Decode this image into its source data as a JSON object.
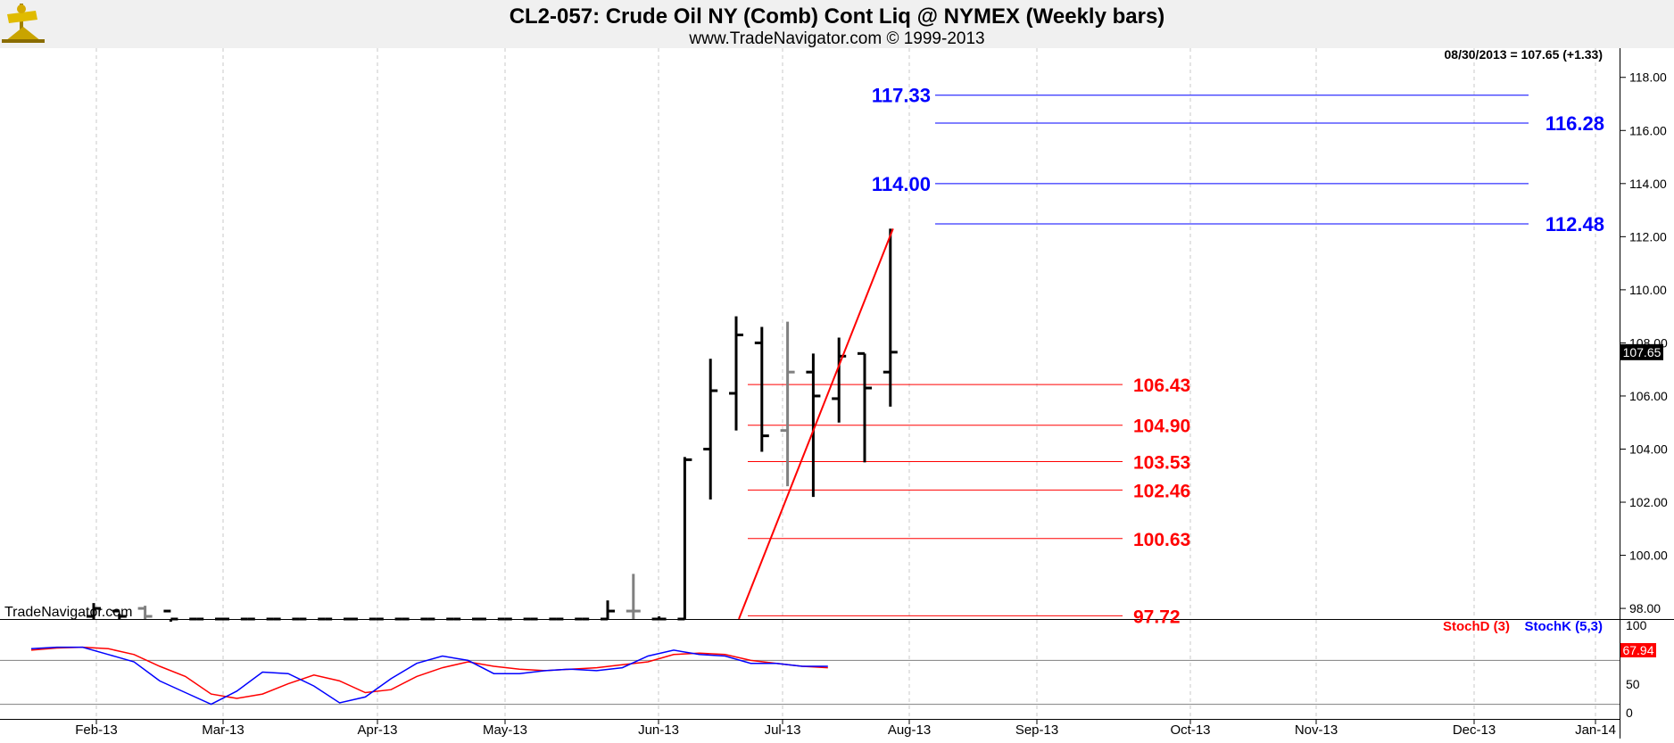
{
  "chart_data": {
    "type": "ohlc",
    "title": "CL2-057:  Crude Oil NY (Comb) Cont Liq @ NYMEX  (Weekly bars)",
    "subtitle": "www.TradeNavigator.com © 1999-2013",
    "last_note": "08/30/2013 = 107.65 (+1.33)",
    "last_value": 107.65,
    "last_label": "107.65",
    "watermark": "TradeNavigator.com",
    "x_tick_labels": [
      "Feb-13",
      "Mar-13",
      "Apr-13",
      "May-13",
      "Jun-13",
      "Jul-13",
      "Aug-13",
      "Sep-13",
      "Oct-13",
      "Nov-13",
      "Dec-13",
      "Jan-14"
    ],
    "price_ylim": [
      97.6,
      119.1
    ],
    "price_ticks": [
      {
        "v": 98,
        "t": "98.00"
      },
      {
        "v": 100,
        "t": "100.00"
      },
      {
        "v": 102,
        "t": "102.00"
      },
      {
        "v": 104,
        "t": "104.00"
      },
      {
        "v": 106,
        "t": "106.00"
      },
      {
        "v": 108,
        "t": "108.00"
      },
      {
        "v": 110,
        "t": "110.00"
      },
      {
        "v": 112,
        "t": "112.00"
      },
      {
        "v": 114,
        "t": "114.00"
      },
      {
        "v": 116,
        "t": "116.00"
      },
      {
        "v": 118,
        "t": "118.00"
      }
    ],
    "bars": [
      {
        "o": 97.7,
        "h": 98.2,
        "l": 97.6,
        "c": 98.0,
        "color": "#000000"
      },
      {
        "o": 97.9,
        "h": 97.8,
        "l": 97.6,
        "c": 97.7,
        "color": "#000000"
      },
      {
        "o": 98.0,
        "h": 98.1,
        "l": 97.6,
        "c": 97.7,
        "color": "#808080"
      },
      {
        "o": 97.9,
        "h": 97.5,
        "l": 97.6,
        "c": 97.6,
        "color": "#000000"
      },
      {
        "o": 97.6,
        "h": 97.6,
        "l": 97.6,
        "c": 97.6,
        "color": "#000000"
      },
      {
        "o": 97.6,
        "h": 97.6,
        "l": 97.6,
        "c": 97.6,
        "color": "#000000"
      },
      {
        "o": 97.6,
        "h": 97.6,
        "l": 97.6,
        "c": 97.6,
        "color": "#000000"
      },
      {
        "o": 97.6,
        "h": 97.6,
        "l": 97.6,
        "c": 97.6,
        "color": "#000000"
      },
      {
        "o": 97.6,
        "h": 97.6,
        "l": 97.6,
        "c": 97.6,
        "color": "#000000"
      },
      {
        "o": 97.6,
        "h": 97.6,
        "l": 97.6,
        "c": 97.6,
        "color": "#000000"
      },
      {
        "o": 97.6,
        "h": 97.6,
        "l": 97.6,
        "c": 97.6,
        "color": "#000000"
      },
      {
        "o": 97.6,
        "h": 97.6,
        "l": 97.6,
        "c": 97.6,
        "color": "#000000"
      },
      {
        "o": 97.6,
        "h": 97.6,
        "l": 97.6,
        "c": 97.6,
        "color": "#000000"
      },
      {
        "o": 97.6,
        "h": 97.6,
        "l": 97.6,
        "c": 97.6,
        "color": "#000000"
      },
      {
        "o": 97.6,
        "h": 97.6,
        "l": 97.6,
        "c": 97.6,
        "color": "#000000"
      },
      {
        "o": 97.6,
        "h": 97.6,
        "l": 97.6,
        "c": 97.6,
        "color": "#000000"
      },
      {
        "o": 97.6,
        "h": 97.6,
        "l": 97.6,
        "c": 97.6,
        "color": "#000000"
      },
      {
        "o": 97.6,
        "h": 97.6,
        "l": 97.6,
        "c": 97.6,
        "color": "#000000"
      },
      {
        "o": 97.6,
        "h": 97.6,
        "l": 97.6,
        "c": 97.6,
        "color": "#000000"
      },
      {
        "o": 97.6,
        "h": 97.6,
        "l": 97.6,
        "c": 97.6,
        "color": "#000000"
      },
      {
        "o": 97.6,
        "h": 98.3,
        "l": 97.6,
        "c": 97.9,
        "color": "#000000"
      },
      {
        "o": 97.9,
        "h": 99.3,
        "l": 97.6,
        "c": 97.9,
        "color": "#808080"
      },
      {
        "o": 97.6,
        "h": 97.7,
        "l": 97.6,
        "c": 97.6,
        "color": "#000000"
      },
      {
        "o": 97.6,
        "h": 103.7,
        "l": 97.6,
        "c": 103.6,
        "color": "#000000"
      },
      {
        "o": 104.0,
        "h": 107.4,
        "l": 102.1,
        "c": 106.2,
        "color": "#000000"
      },
      {
        "o": 106.1,
        "h": 109.0,
        "l": 104.7,
        "c": 108.3,
        "color": "#000000"
      },
      {
        "o": 108.0,
        "h": 108.6,
        "l": 103.9,
        "c": 104.5,
        "color": "#000000"
      },
      {
        "o": 104.7,
        "h": 108.8,
        "l": 102.6,
        "c": 106.9,
        "color": "#808080"
      },
      {
        "o": 106.9,
        "h": 107.6,
        "l": 102.2,
        "c": 106.0,
        "color": "#000000"
      },
      {
        "o": 105.9,
        "h": 108.2,
        "l": 105.0,
        "c": 107.5,
        "color": "#000000"
      },
      {
        "o": 107.6,
        "h": 107.6,
        "l": 103.5,
        "c": 106.3,
        "color": "#000000"
      },
      {
        "o": 106.9,
        "h": 112.3,
        "l": 105.6,
        "c": 107.65,
        "color": "#000000"
      }
    ],
    "trend_line": {
      "from": {
        "bar": 25,
        "v": 97.6
      },
      "to": {
        "bar": 31,
        "v": 112.3
      }
    },
    "fib_levels": [
      {
        "v": 117.33,
        "label": "117.33",
        "color": "blue",
        "label_side": "left",
        "end": "short"
      },
      {
        "v": 116.28,
        "label": "116.28",
        "color": "blue",
        "label_side": "right",
        "end": "long"
      },
      {
        "v": 114.0,
        "label": "114.00",
        "color": "blue",
        "label_side": "left",
        "end": "short"
      },
      {
        "v": 112.48,
        "label": "112.48",
        "color": "blue",
        "label_side": "right",
        "end": "long"
      },
      {
        "v": 106.43,
        "label": "106.43",
        "color": "red",
        "label_side": "right",
        "end": "red"
      },
      {
        "v": 104.9,
        "label": "104.90",
        "color": "red",
        "label_side": "right",
        "end": "red"
      },
      {
        "v": 103.53,
        "label": "103.53",
        "color": "red",
        "label_side": "right",
        "end": "red"
      },
      {
        "v": 102.46,
        "label": "102.46",
        "color": "red",
        "label_side": "right",
        "end": "red"
      },
      {
        "v": 100.63,
        "label": "100.63",
        "color": "red",
        "label_side": "right",
        "end": "red"
      },
      {
        "v": 97.72,
        "label": "97.72",
        "color": "red",
        "label_side": "right",
        "end": "red"
      }
    ],
    "stoch": {
      "ylim": [
        0,
        100
      ],
      "ticks": [
        {
          "v": 0,
          "t": "0"
        },
        {
          "v": 50,
          "t": "50"
        },
        {
          "v": 100,
          "t": "100"
        }
      ],
      "ref_levels": [
        80,
        20
      ],
      "legend_d": "StochD (3)",
      "legend_k": "StochK (5,3)",
      "last_label": "67.94",
      "stochk": [
        96,
        98,
        98,
        88,
        78,
        52,
        36,
        20,
        38,
        64,
        62,
        45,
        22,
        30,
        55,
        76,
        86,
        80,
        62,
        62,
        66,
        68,
        66,
        70,
        86,
        94,
        88,
        86,
        76,
        76,
        72,
        72
      ],
      "stochd": [
        94,
        97,
        98,
        96,
        88,
        72,
        58,
        34,
        28,
        34,
        48,
        60,
        52,
        36,
        40,
        58,
        70,
        78,
        72,
        68,
        66,
        68,
        70,
        74,
        78,
        88,
        90,
        88,
        80,
        76,
        72,
        70
      ]
    }
  }
}
